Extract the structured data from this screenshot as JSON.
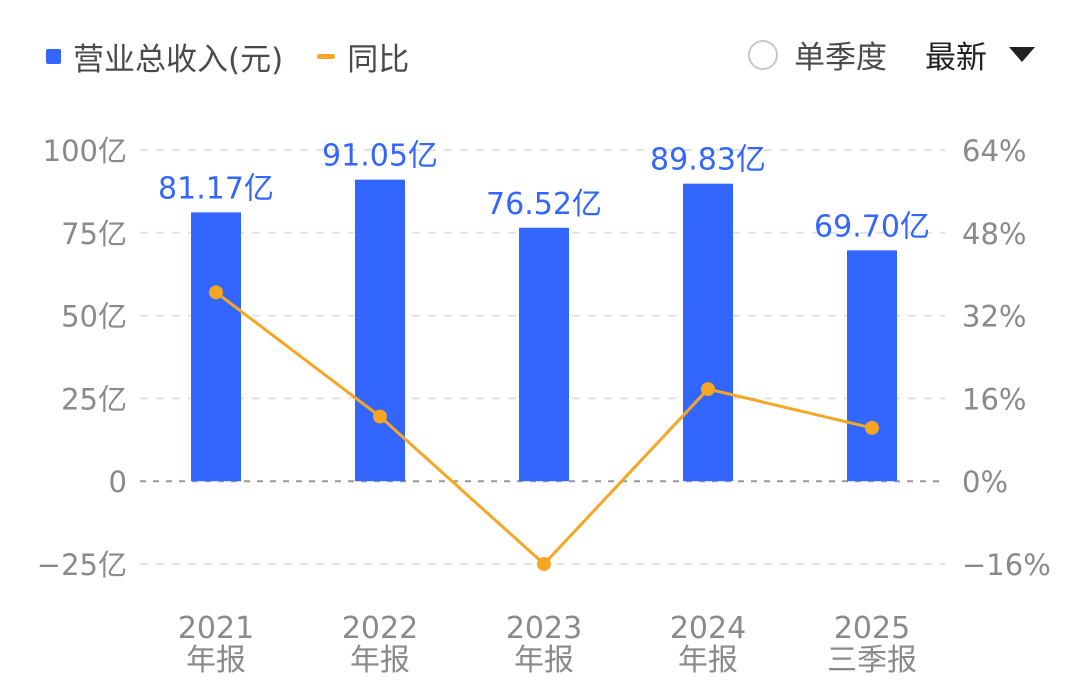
{
  "legend": {
    "bar_label": "营业总收入(元)",
    "line_label": "同比"
  },
  "controls": {
    "single_quarter_label": "单季度",
    "latest_label": "最新"
  },
  "colors": {
    "bar": "#3366ff",
    "line": "#f5a623",
    "value_label": "#3366ff",
    "axis_text": "#8a8a8a",
    "grid": "#e3e3e3"
  },
  "chart_data": {
    "type": "bar",
    "categories": [
      [
        "2021",
        "年报"
      ],
      [
        "2022",
        "年报"
      ],
      [
        "2023",
        "年报"
      ],
      [
        "2024",
        "年报"
      ],
      [
        "2025",
        "三季报"
      ]
    ],
    "series": [
      {
        "name": "营业总收入(元)",
        "type": "bar",
        "axis": "left",
        "values": [
          81.17,
          91.05,
          76.52,
          89.83,
          69.7
        ],
        "labels": [
          "81.17亿",
          "91.05亿",
          "76.52亿",
          "89.83亿",
          "69.70亿"
        ]
      },
      {
        "name": "同比",
        "type": "line",
        "axis": "right",
        "values": [
          36.5,
          12.5,
          -16.0,
          17.8,
          10.3
        ]
      }
    ],
    "y_left": {
      "ylim": [
        -25,
        100
      ],
      "ticks": [
        100,
        75,
        50,
        25,
        0,
        -25
      ],
      "tick_labels": [
        "100亿",
        "75亿",
        "50亿",
        "25亿",
        "0",
        "−25亿"
      ]
    },
    "y_right": {
      "ylim": [
        -16,
        64
      ],
      "ticks": [
        64,
        48,
        32,
        16,
        0,
        -16
      ],
      "tick_labels": [
        "64%",
        "48%",
        "32%",
        "16%",
        "0%",
        "−16%"
      ]
    },
    "grid": true,
    "legend_position": "top-left"
  }
}
